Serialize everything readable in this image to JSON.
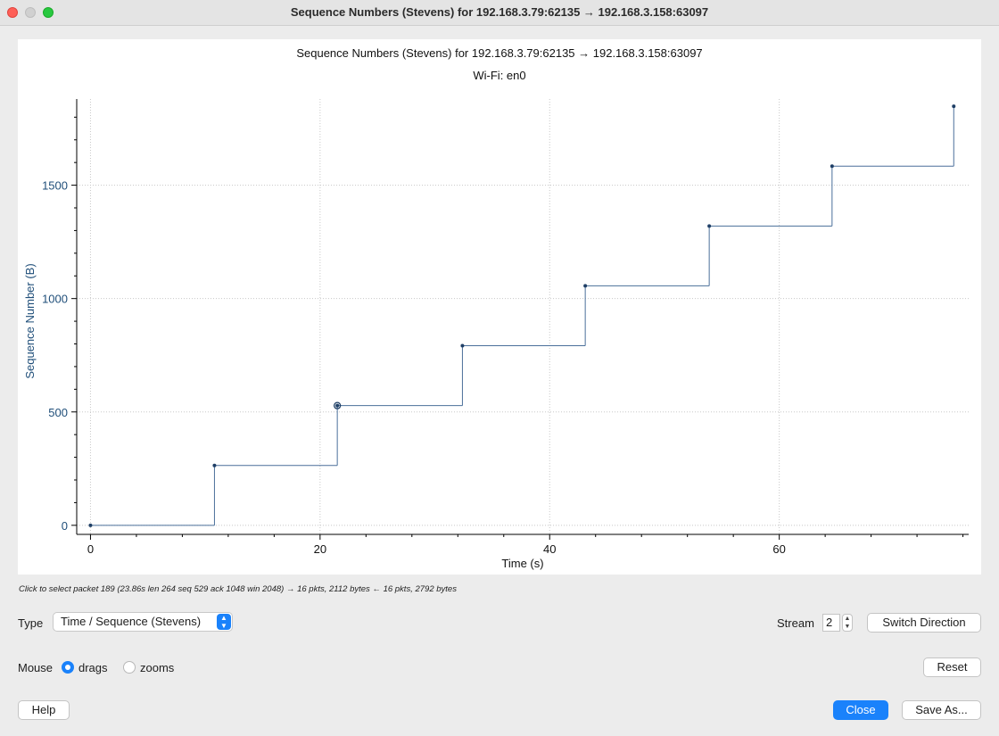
{
  "window": {
    "title": "Sequence Numbers (Stevens) for 192.168.3.79:62135 → 192.168.3.158:63097"
  },
  "chart_data": {
    "type": "line",
    "title": "Sequence Numbers (Stevens) for 192.168.3.79:62135 → 192.168.3.158:63097",
    "subtitle": "Wi-Fi: en0",
    "xlabel": "Time (s)",
    "ylabel": "Sequence Number (B)",
    "xlim": [
      -1.2,
      76.5
    ],
    "ylim": [
      -40,
      1880
    ],
    "x_ticks": [
      "0",
      "20",
      "40",
      "60"
    ],
    "y_ticks": [
      "0",
      "500",
      "1000",
      "1500"
    ],
    "grid": true,
    "series": [
      {
        "step": true,
        "points": [
          {
            "x": 0,
            "y": 0
          },
          {
            "x": 10.8,
            "y": 264
          },
          {
            "x": 21.5,
            "y": 528
          },
          {
            "x": 32.4,
            "y": 792
          },
          {
            "x": 43.1,
            "y": 1056
          },
          {
            "x": 53.9,
            "y": 1320
          },
          {
            "x": 64.6,
            "y": 1584
          },
          {
            "x": 75.2,
            "y": 1848
          }
        ]
      }
    ],
    "highlighted_point_index": 2,
    "colors": {
      "series": "#4a6f9a",
      "axis_label": "#1f4e79",
      "grid": "#c8c8c8"
    }
  },
  "status": {
    "hint": "Click to select packet 189 (23.86s len 264 seq 529 ack 1048 win 2048) → 16 pkts, 2112 bytes ← 16 pkts, 2792 bytes"
  },
  "controls": {
    "type_label": "Type",
    "type_value": "Time / Sequence (Stevens)",
    "stream_label": "Stream",
    "stream_value": "2",
    "switch_direction": "Switch Direction",
    "mouse_label": "Mouse",
    "drags": "drags",
    "zooms": "zooms",
    "mouse_mode": "drags",
    "reset": "Reset",
    "help": "Help",
    "close": "Close",
    "save_as": "Save As..."
  },
  "colors": {
    "accent": "#1a82fb",
    "close_red": "#fe5f57",
    "max_green": "#28c840"
  }
}
